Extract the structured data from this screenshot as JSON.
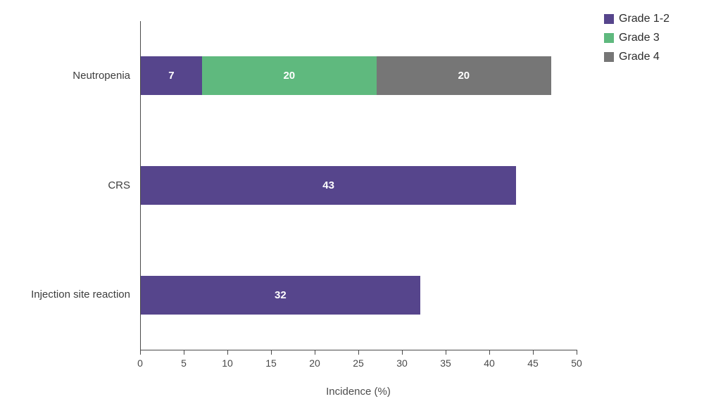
{
  "chart_data": {
    "type": "bar",
    "orientation": "horizontal",
    "stacked": true,
    "title": "",
    "categories": [
      "Neutropenia",
      "CRS",
      "Injection site reaction"
    ],
    "series": [
      {
        "name": "Grade 1-2",
        "color": "#56458c",
        "values": [
          7,
          43,
          32
        ]
      },
      {
        "name": "Grade 3",
        "color": "#5fb97e",
        "values": [
          20,
          0,
          0
        ]
      },
      {
        "name": "Grade 4",
        "color": "#767676",
        "values": [
          20,
          0,
          0
        ]
      }
    ],
    "xlabel": "Incidence (%)",
    "ylabel": "",
    "xlim": [
      0,
      50
    ],
    "xticks": [
      0,
      5,
      10,
      15,
      20,
      25,
      30,
      35,
      40,
      45,
      50
    ],
    "grid": false,
    "legend_position": "top-right",
    "value_labels_shown": true
  },
  "colors": {
    "background": "#ffffff",
    "axis": "#4a4a4a",
    "tick_label": "#494949",
    "category_label": "#3d3d3d",
    "value_label": "#ffffff",
    "legend_text": "#2b2b2b"
  }
}
